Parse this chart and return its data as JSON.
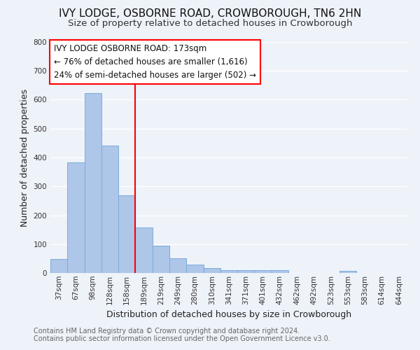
{
  "title": "IVY LODGE, OSBORNE ROAD, CROWBOROUGH, TN6 2HN",
  "subtitle": "Size of property relative to detached houses in Crowborough",
  "xlabel": "Distribution of detached houses by size in Crowborough",
  "ylabel": "Number of detached properties",
  "footnote1": "Contains HM Land Registry data © Crown copyright and database right 2024.",
  "footnote2": "Contains public sector information licensed under the Open Government Licence v3.0.",
  "bar_labels": [
    "37sqm",
    "67sqm",
    "98sqm",
    "128sqm",
    "158sqm",
    "189sqm",
    "219sqm",
    "249sqm",
    "280sqm",
    "310sqm",
    "341sqm",
    "371sqm",
    "401sqm",
    "432sqm",
    "462sqm",
    "492sqm",
    "523sqm",
    "553sqm",
    "583sqm",
    "614sqm",
    "644sqm"
  ],
  "bar_values": [
    48,
    383,
    622,
    440,
    268,
    157,
    95,
    51,
    30,
    17,
    10,
    10,
    10,
    10,
    0,
    0,
    0,
    7,
    0,
    0,
    0
  ],
  "bar_color": "#aec6e8",
  "bar_edge_color": "#7aabda",
  "vline_color": "red",
  "vline_x": 4.5,
  "annotation_title": "IVY LODGE OSBORNE ROAD: 173sqm",
  "annotation_line1": "← 76% of detached houses are smaller (1,616)",
  "annotation_line2": "24% of semi-detached houses are larger (502) →",
  "ylim": [
    0,
    800
  ],
  "yticks": [
    0,
    100,
    200,
    300,
    400,
    500,
    600,
    700,
    800
  ],
  "background_color": "#eef2f9",
  "plot_bg_color": "#eef2f9",
  "grid_color": "#ffffff",
  "title_fontsize": 11,
  "subtitle_fontsize": 9.5,
  "axis_label_fontsize": 9,
  "tick_fontsize": 7.5,
  "annotation_fontsize": 8.5,
  "footnote_fontsize": 7
}
